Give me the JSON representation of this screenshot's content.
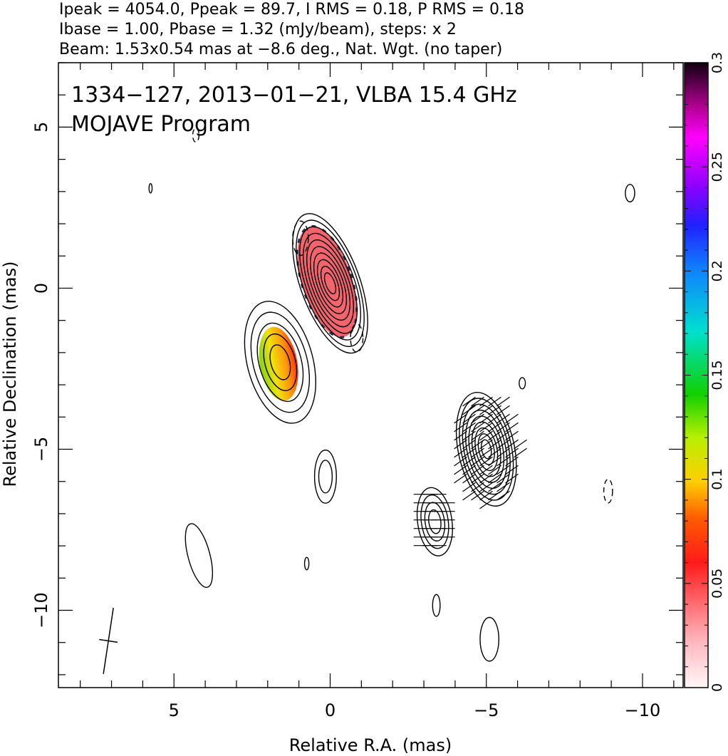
{
  "header": {
    "line1": "Ipeak = 4054.0, Ppeak = 89.7, I RMS = 0.18, P RMS = 0.18",
    "line2": "Ibase = 1.00, Pbase = 1.32 (mJy/beam), steps: x 2",
    "line3": "Beam: 1.53x0.54 mas at −8.6 deg., Nat. Wgt. (no taper)"
  },
  "annotation": {
    "line1": "1334−127, 2013−01−21, VLBA 15.4 GHz",
    "line2": "MOJAVE Program"
  },
  "chart_data": {
    "type": "contour",
    "xlabel": "Relative R.A. (mas)",
    "ylabel": "Relative Declination (mas)",
    "xlim": [
      8.7,
      -11.3
    ],
    "ylim": [
      -12.4,
      7.0
    ],
    "x_ticks": [
      5,
      0,
      -5,
      -10
    ],
    "x_tick_labels": [
      "5",
      "0",
      "−5",
      "−10"
    ],
    "y_ticks": [
      5,
      0,
      -5,
      -10
    ],
    "y_tick_labels": [
      "5",
      "0",
      "−5",
      "−10"
    ],
    "x_minor_step": 1,
    "y_minor_step": 1,
    "colorbar": {
      "min": 0,
      "max": 0.3,
      "ticks": [
        0,
        0.05,
        0.1,
        0.15,
        0.2,
        0.25,
        0.3
      ],
      "tick_labels": [
        "0",
        "0.05",
        "0.1",
        "0.15",
        "0.2",
        "0.25",
        "0.3"
      ]
    },
    "components": [
      {
        "x": 0.0,
        "y": 0.15,
        "ry": 2.35,
        "rx": 0.95,
        "angle": -20,
        "levels": 10
      },
      {
        "x": 1.6,
        "y": -2.3,
        "ry": 2.0,
        "rx": 1.05,
        "angle": -15,
        "levels": 5
      },
      {
        "x": -5.0,
        "y": -5.0,
        "ry": 1.85,
        "rx": 0.9,
        "angle": -12,
        "levels": 9
      },
      {
        "x": -3.35,
        "y": -7.25,
        "ry": 1.1,
        "rx": 0.55,
        "angle": -8,
        "levels": 4
      },
      {
        "x": 0.15,
        "y": -5.85,
        "ry": 0.85,
        "rx": 0.35,
        "angle": 0,
        "levels": 2
      }
    ],
    "isolated_contours": [
      {
        "x": 4.2,
        "y": -8.3,
        "ry": 1.05,
        "rx": 0.35,
        "angle": -15,
        "dashed": false
      },
      {
        "x": -5.1,
        "y": -10.9,
        "ry": 0.7,
        "rx": 0.3,
        "angle": 0,
        "dashed": false
      },
      {
        "x": -9.6,
        "y": 2.95,
        "ry": 0.28,
        "rx": 0.15,
        "angle": 0,
        "dashed": false
      },
      {
        "x": 5.75,
        "y": 3.1,
        "ry": 0.15,
        "rx": 0.05,
        "angle": 0,
        "dashed": false
      },
      {
        "x": 0.75,
        "y": -8.55,
        "ry": 0.2,
        "rx": 0.07,
        "angle": 0,
        "dashed": false
      },
      {
        "x": -3.4,
        "y": -9.85,
        "ry": 0.35,
        "rx": 0.12,
        "angle": 0,
        "dashed": false
      },
      {
        "x": -6.15,
        "y": -2.95,
        "ry": 0.18,
        "rx": 0.1,
        "angle": 0,
        "dashed": false
      },
      {
        "x": 4.3,
        "y": 4.75,
        "ry": 0.22,
        "rx": 0.1,
        "angle": 0,
        "dashed": true
      },
      {
        "x": 0.95,
        "y": 1.55,
        "ry": 0.55,
        "rx": 0.25,
        "angle": 0,
        "dashed": true
      },
      {
        "x": -0.85,
        "y": -1.55,
        "ry": 0.45,
        "rx": 0.2,
        "angle": 0,
        "dashed": true
      },
      {
        "x": -8.9,
        "y": -6.3,
        "ry": 0.38,
        "rx": 0.14,
        "angle": 0,
        "dashed": true
      }
    ],
    "polarization_patches": [
      {
        "x": 0.1,
        "y": 0.2,
        "ry": 1.85,
        "rx": 0.8,
        "angle": -18,
        "color": "#f25c64"
      },
      {
        "x": 1.65,
        "y": -2.35,
        "ry": 1.2,
        "rx": 0.6,
        "angle": -10,
        "color": "#e8a020"
      }
    ],
    "evpa_regions": [
      {
        "x": -5.0,
        "y": -5.0,
        "rx": 1.1,
        "ry": 1.8,
        "angle_deg": 35
      },
      {
        "x": -3.3,
        "y": -7.2,
        "rx": 0.65,
        "ry": 1.1,
        "angle_deg": 0
      }
    ],
    "beam": {
      "x": 7.1,
      "y": -10.95,
      "major": 1.53,
      "minor": 0.54,
      "pa": -8.6
    }
  }
}
